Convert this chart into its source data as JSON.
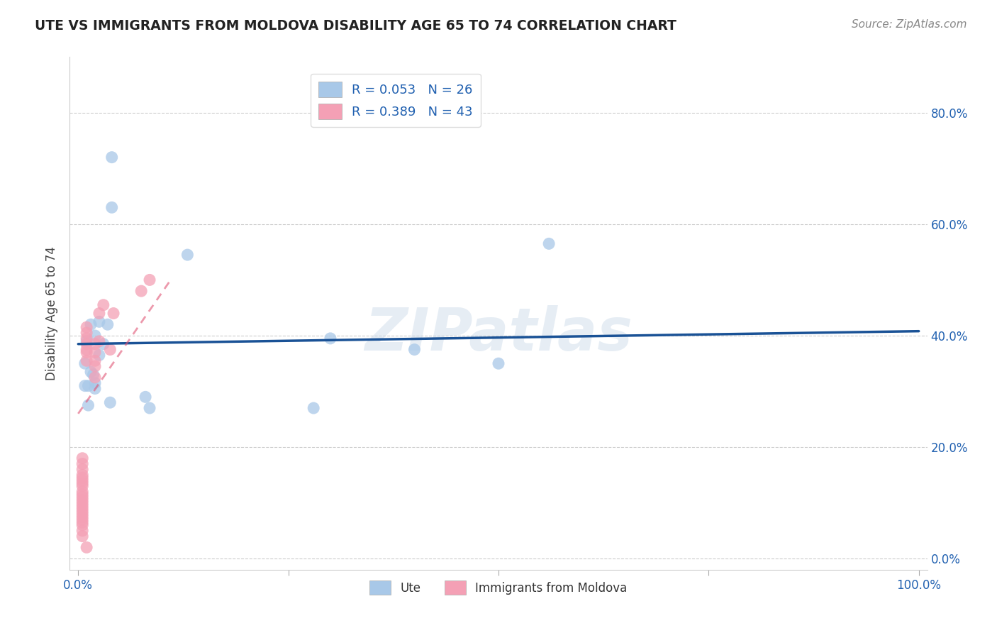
{
  "title": "UTE VS IMMIGRANTS FROM MOLDOVA DISABILITY AGE 65 TO 74 CORRELATION CHART",
  "source": "Source: ZipAtlas.com",
  "ylabel": "Disability Age 65 to 74",
  "legend_label_ute": "Ute",
  "legend_label_moldova": "Immigrants from Moldova",
  "ute_R": 0.053,
  "ute_N": 26,
  "moldova_R": 0.389,
  "moldova_N": 43,
  "xlim": [
    -0.01,
    1.01
  ],
  "ylim": [
    -0.02,
    0.9
  ],
  "xticks": [
    0.0,
    0.25,
    0.5,
    0.75,
    1.0
  ],
  "xtick_labels_show": [
    "0.0%",
    "",
    "",
    "",
    "100.0%"
  ],
  "yticks": [
    0.0,
    0.2,
    0.4,
    0.6,
    0.8
  ],
  "ytick_labels": [
    "0.0%",
    "20.0%",
    "40.0%",
    "60.0%",
    "80.0%"
  ],
  "watermark": "ZIPatlas",
  "ute_color": "#a8c8e8",
  "moldova_color": "#f4a0b5",
  "ute_line_color": "#1a5296",
  "moldova_line_color": "#e05575",
  "ute_scatter_x": [
    0.04,
    0.04,
    0.02,
    0.015,
    0.01,
    0.03,
    0.025,
    0.035,
    0.02,
    0.015,
    0.008,
    0.012,
    0.02,
    0.08,
    0.085,
    0.13,
    0.3,
    0.28,
    0.4,
    0.5,
    0.56,
    0.025,
    0.008,
    0.018,
    0.038,
    0.012
  ],
  "ute_scatter_y": [
    0.72,
    0.63,
    0.4,
    0.42,
    0.39,
    0.385,
    0.365,
    0.42,
    0.315,
    0.335,
    0.31,
    0.31,
    0.305,
    0.29,
    0.27,
    0.545,
    0.395,
    0.27,
    0.375,
    0.35,
    0.565,
    0.425,
    0.35,
    0.33,
    0.28,
    0.275
  ],
  "moldova_scatter_x": [
    0.005,
    0.005,
    0.005,
    0.005,
    0.005,
    0.005,
    0.005,
    0.005,
    0.005,
    0.005,
    0.005,
    0.005,
    0.005,
    0.005,
    0.005,
    0.005,
    0.005,
    0.005,
    0.005,
    0.005,
    0.005,
    0.005,
    0.005,
    0.01,
    0.01,
    0.01,
    0.01,
    0.01,
    0.01,
    0.01,
    0.02,
    0.02,
    0.02,
    0.02,
    0.02,
    0.025,
    0.025,
    0.03,
    0.038,
    0.042,
    0.075,
    0.085,
    0.01
  ],
  "moldova_scatter_y": [
    0.04,
    0.05,
    0.06,
    0.065,
    0.07,
    0.075,
    0.08,
    0.085,
    0.09,
    0.095,
    0.1,
    0.105,
    0.11,
    0.115,
    0.12,
    0.13,
    0.135,
    0.14,
    0.145,
    0.15,
    0.16,
    0.17,
    0.18,
    0.355,
    0.37,
    0.375,
    0.385,
    0.395,
    0.405,
    0.415,
    0.325,
    0.345,
    0.355,
    0.37,
    0.385,
    0.39,
    0.44,
    0.455,
    0.375,
    0.44,
    0.48,
    0.5,
    0.02
  ],
  "ute_line_x": [
    0.0,
    1.0
  ],
  "ute_line_y": [
    0.385,
    0.408
  ],
  "moldova_line_x": [
    0.0,
    0.11
  ],
  "moldova_line_y": [
    0.26,
    0.5
  ]
}
